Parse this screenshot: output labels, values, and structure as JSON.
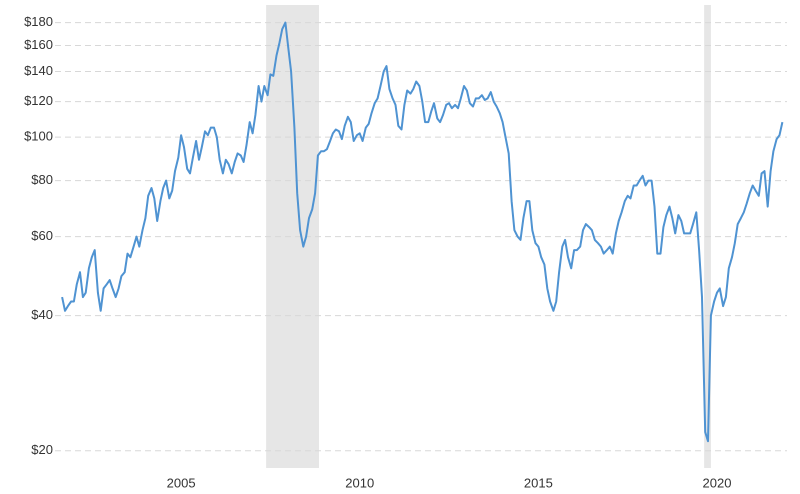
{
  "chart_data": {
    "type": "line",
    "x": [
      2001.67,
      2001.75,
      2001.83,
      2001.92,
      2002,
      2002.08,
      2002.17,
      2002.25,
      2002.33,
      2002.42,
      2002.5,
      2002.58,
      2002.67,
      2002.75,
      2002.83,
      2002.92,
      2003,
      2003.08,
      2003.17,
      2003.25,
      2003.33,
      2003.42,
      2003.5,
      2003.58,
      2003.67,
      2003.75,
      2003.83,
      2003.92,
      2004,
      2004.08,
      2004.17,
      2004.25,
      2004.33,
      2004.42,
      2004.5,
      2004.58,
      2004.67,
      2004.75,
      2004.83,
      2004.92,
      2005,
      2005.08,
      2005.17,
      2005.25,
      2005.33,
      2005.42,
      2005.5,
      2005.58,
      2005.67,
      2005.75,
      2005.83,
      2005.92,
      2006,
      2006.08,
      2006.17,
      2006.25,
      2006.33,
      2006.42,
      2006.5,
      2006.58,
      2006.67,
      2006.75,
      2006.83,
      2006.92,
      2007,
      2007.08,
      2007.17,
      2007.25,
      2007.33,
      2007.42,
      2007.5,
      2007.58,
      2007.67,
      2007.75,
      2007.83,
      2007.92,
      2008,
      2008.08,
      2008.17,
      2008.25,
      2008.33,
      2008.42,
      2008.5,
      2008.58,
      2008.67,
      2008.75,
      2008.83,
      2008.92,
      2009,
      2009.08,
      2009.17,
      2009.25,
      2009.33,
      2009.42,
      2009.5,
      2009.58,
      2009.67,
      2009.75,
      2009.83,
      2009.92,
      2010,
      2010.08,
      2010.17,
      2010.25,
      2010.33,
      2010.42,
      2010.5,
      2010.58,
      2010.67,
      2010.75,
      2010.83,
      2010.92,
      2011,
      2011.08,
      2011.17,
      2011.25,
      2011.33,
      2011.42,
      2011.5,
      2011.58,
      2011.67,
      2011.75,
      2011.83,
      2011.92,
      2012,
      2012.08,
      2012.17,
      2012.25,
      2012.33,
      2012.42,
      2012.5,
      2012.58,
      2012.67,
      2012.75,
      2012.83,
      2012.92,
      2013,
      2013.08,
      2013.17,
      2013.25,
      2013.33,
      2013.42,
      2013.5,
      2013.58,
      2013.67,
      2013.75,
      2013.83,
      2013.92,
      2014,
      2014.08,
      2014.17,
      2014.25,
      2014.33,
      2014.42,
      2014.5,
      2014.58,
      2014.67,
      2014.75,
      2014.83,
      2014.92,
      2015,
      2015.08,
      2015.17,
      2015.25,
      2015.33,
      2015.42,
      2015.5,
      2015.58,
      2015.67,
      2015.75,
      2015.83,
      2015.92,
      2016,
      2016.08,
      2016.17,
      2016.25,
      2016.33,
      2016.42,
      2016.5,
      2016.58,
      2016.67,
      2016.75,
      2016.83,
      2016.92,
      2017,
      2017.08,
      2017.17,
      2017.25,
      2017.33,
      2017.42,
      2017.5,
      2017.58,
      2017.67,
      2017.75,
      2017.83,
      2017.92,
      2018,
      2018.08,
      2018.17,
      2018.25,
      2018.33,
      2018.42,
      2018.5,
      2018.58,
      2018.67,
      2018.75,
      2018.83,
      2018.92,
      2019,
      2019.08,
      2019.17,
      2019.25,
      2019.33,
      2019.42,
      2019.5,
      2019.58,
      2019.67,
      2019.75,
      2019.83,
      2019.92,
      2020,
      2020.08,
      2020.17,
      2020.25,
      2020.33,
      2020.42,
      2020.5,
      2020.58,
      2020.67,
      2020.75,
      2020.83,
      2020.92,
      2021,
      2021.08,
      2021.17,
      2021.25,
      2021.33,
      2021.42,
      2021.5,
      2021.58,
      2021.67,
      2021.75,
      2021.83
    ],
    "values": [
      44,
      41,
      42,
      43,
      43,
      47,
      50,
      44,
      45,
      51,
      54,
      56,
      45,
      41,
      46,
      47,
      48,
      46,
      44,
      46,
      49,
      50,
      55,
      54,
      57,
      60,
      57,
      62,
      66,
      74,
      77,
      73,
      65,
      72,
      77,
      80,
      73,
      76,
      84,
      90,
      101,
      95,
      85,
      83,
      90,
      98,
      89,
      95,
      103,
      101,
      105,
      105,
      100,
      89,
      83,
      89,
      87,
      83,
      88,
      92,
      91,
      88,
      96,
      108,
      102,
      112,
      130,
      120,
      130,
      124,
      138,
      137,
      152,
      162,
      174,
      180,
      158,
      140,
      105,
      75,
      62,
      57,
      60,
      66,
      69,
      75,
      91,
      93,
      93,
      94,
      98,
      102,
      104,
      103,
      99,
      106,
      111,
      108,
      98,
      101,
      102,
      98,
      105,
      107,
      113,
      119,
      122,
      130,
      140,
      144,
      128,
      122,
      118,
      106,
      104,
      118,
      127,
      125,
      128,
      133,
      130,
      120,
      108,
      108,
      114,
      119,
      110,
      108,
      112,
      118,
      119,
      116,
      118,
      116,
      122,
      130,
      127,
      119,
      117,
      122,
      122,
      124,
      121,
      122,
      126,
      120,
      117,
      113,
      108,
      100,
      92,
      72,
      62,
      60,
      59,
      66,
      72,
      72,
      62,
      58,
      57,
      54,
      52,
      46,
      43,
      41,
      43,
      50,
      57,
      59,
      54,
      51,
      56,
      56,
      57,
      62,
      64,
      63,
      62,
      59,
      58,
      57,
      55,
      56,
      57,
      55,
      61,
      65,
      68,
      72,
      74,
      73,
      78,
      78,
      80,
      82,
      78,
      80,
      80,
      70,
      55,
      55,
      63,
      67,
      70,
      66,
      61,
      67,
      65,
      61,
      61,
      61,
      64,
      68,
      56,
      44,
      22,
      21,
      40,
      43,
      45,
      46,
      42,
      44,
      51,
      54,
      58,
      64,
      66,
      68,
      71,
      75,
      78,
      76,
      74,
      83,
      84,
      70,
      84,
      93,
      99,
      101,
      108
    ],
    "color": "#4f93d2",
    "shaded_ranges": [
      [
        2007.38,
        2008.86
      ],
      [
        2019.64,
        2019.83
      ]
    ],
    "shade_color": "#e6e6e6",
    "xlim": [
      2001.47,
      2021.96
    ],
    "xticks": [
      2005,
      2010,
      2015,
      2020
    ],
    "ylim": [
      18.3,
      197
    ],
    "yticks": [
      {
        "value": 20,
        "label": "$20"
      },
      {
        "value": 40,
        "label": "$40"
      },
      {
        "value": 60,
        "label": "$60"
      },
      {
        "value": 80,
        "label": "$80"
      },
      {
        "value": 100,
        "label": "$100"
      },
      {
        "value": 120,
        "label": "$120"
      },
      {
        "value": 140,
        "label": "$140"
      },
      {
        "value": 160,
        "label": "$160"
      },
      {
        "value": 180,
        "label": "$180"
      }
    ],
    "log_scale": true,
    "grid": true
  }
}
